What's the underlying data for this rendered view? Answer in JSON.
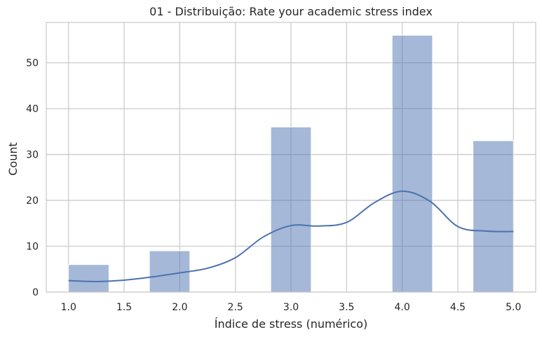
{
  "chart_data": {
    "type": "bar",
    "title": "01 - Distribuição: Rate your academic stress index",
    "xlabel": "Índice de stress (numérico)",
    "ylabel": "Count",
    "xlim": [
      0.8,
      5.2
    ],
    "ylim": [
      0,
      58.8
    ],
    "grid": true,
    "xticks": [
      1.0,
      1.5,
      2.0,
      2.5,
      3.0,
      3.5,
      4.0,
      4.5,
      5.0
    ],
    "xtick_labels": [
      "1.0",
      "1.5",
      "2.0",
      "2.5",
      "3.0",
      "3.5",
      "4.0",
      "4.5",
      "5.0"
    ],
    "yticks": [
      0,
      10,
      20,
      30,
      40,
      50
    ],
    "ytick_labels": [
      "0",
      "10",
      "20",
      "30",
      "40",
      "50"
    ],
    "bin_edges": [
      1.0,
      1.3636,
      1.7273,
      2.0909,
      2.4545,
      2.8182,
      3.1818,
      3.5455,
      3.9091,
      4.2727,
      4.6364,
      5.0
    ],
    "counts": [
      6,
      0,
      9,
      0,
      0,
      36,
      0,
      0,
      56,
      0,
      33
    ],
    "kde": {
      "x": [
        1.0,
        1.25,
        1.5,
        1.75,
        2.0,
        2.25,
        2.5,
        2.75,
        3.0,
        3.25,
        3.5,
        3.75,
        4.0,
        4.25,
        4.5,
        4.75,
        5.0
      ],
      "y": [
        2.5,
        2.3,
        2.6,
        3.3,
        4.2,
        5.2,
        7.5,
        12.0,
        14.5,
        14.4,
        15.2,
        19.5,
        22.0,
        19.8,
        14.3,
        13.3,
        13.2
      ]
    },
    "colors": {
      "bar_fill": "#4c72b0",
      "bar_opacity": 0.5,
      "kde_line": "#4c72b0",
      "grid": "#cccccc"
    }
  }
}
